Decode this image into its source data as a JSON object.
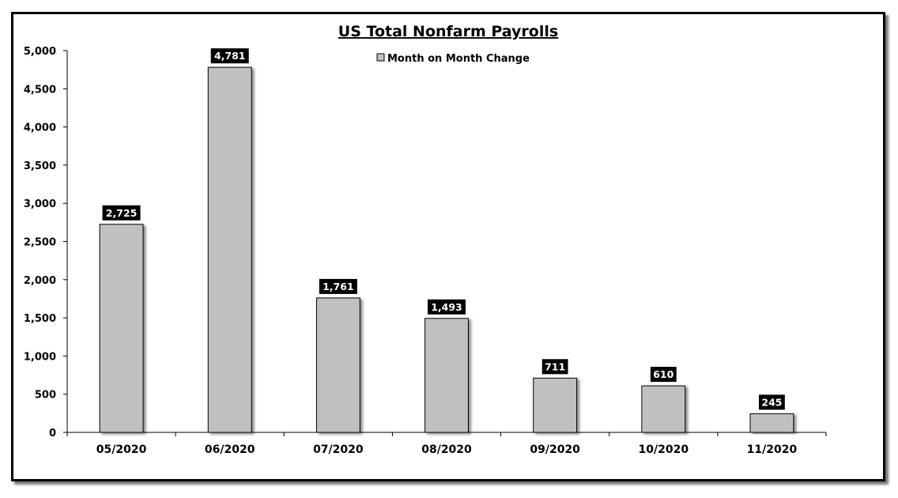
{
  "chart_data": {
    "type": "bar",
    "title": "US Total Nonfarm Payrolls",
    "xlabel": "",
    "ylabel": "",
    "categories": [
      "05/2020",
      "06/2020",
      "07/2020",
      "08/2020",
      "09/2020",
      "10/2020",
      "11/2020"
    ],
    "series": [
      {
        "name": "Month on Month Change",
        "values": [
          2725,
          4781,
          1761,
          1493,
          711,
          610,
          245
        ]
      }
    ],
    "data_labels": [
      "2,725",
      "4,781",
      "1,761",
      "1,493",
      "711",
      "610",
      "245"
    ],
    "ylim": [
      0,
      5000
    ],
    "yticks": [
      0,
      500,
      1000,
      1500,
      2000,
      2500,
      3000,
      3500,
      4000,
      4500,
      5000
    ],
    "ytick_labels": [
      "0",
      "500",
      "1,000",
      "1,500",
      "2,000",
      "2,500",
      "3,000",
      "3,500",
      "4,000",
      "4,500",
      "5,000"
    ],
    "grid": false,
    "legend_position": "top-center",
    "colors": {
      "bar": "#c0c0c0",
      "bar_edge": "#000000",
      "label_bg": "#000000",
      "label_text": "#ffffff",
      "frame": "#000000"
    }
  }
}
